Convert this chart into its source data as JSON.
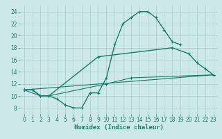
{
  "bg_color": "#cce8e8",
  "grid_color": "#aacccc",
  "line_color": "#1a7a6e",
  "xlabel": "Humidex (Indice chaleur)",
  "xlabel_fontsize": 6.5,
  "xlim": [
    -0.5,
    23.5
  ],
  "ylim": [
    7,
    25
  ],
  "xticks": [
    0,
    1,
    2,
    3,
    4,
    5,
    6,
    7,
    8,
    9,
    10,
    11,
    12,
    13,
    14,
    15,
    16,
    17,
    18,
    19,
    20,
    21,
    22,
    23
  ],
  "yticks": [
    8,
    10,
    12,
    14,
    16,
    18,
    20,
    22,
    24
  ],
  "tick_fontsize": 5.5,
  "line1_x": [
    0,
    1,
    2,
    3,
    4,
    5,
    6,
    7,
    8,
    9,
    10,
    11,
    12,
    13,
    14,
    15,
    16,
    17,
    18,
    19
  ],
  "line1_y": [
    11,
    11,
    10,
    10,
    9.5,
    8.5,
    8,
    8,
    10.5,
    10.5,
    13,
    18.5,
    22,
    23,
    24,
    24,
    23,
    21,
    19,
    18.5
  ],
  "line2_x": [
    0,
    1,
    2,
    3,
    9,
    18,
    20,
    21,
    22,
    23
  ],
  "line2_y": [
    11,
    11,
    10,
    10,
    16.5,
    18,
    17,
    15.5,
    14.5,
    13.5
  ],
  "line3_x": [
    0,
    2,
    3,
    10,
    13,
    23
  ],
  "line3_y": [
    11,
    10,
    10,
    12,
    13,
    13.5
  ],
  "line4_x": [
    0,
    23
  ],
  "line4_y": [
    11,
    13.5
  ]
}
